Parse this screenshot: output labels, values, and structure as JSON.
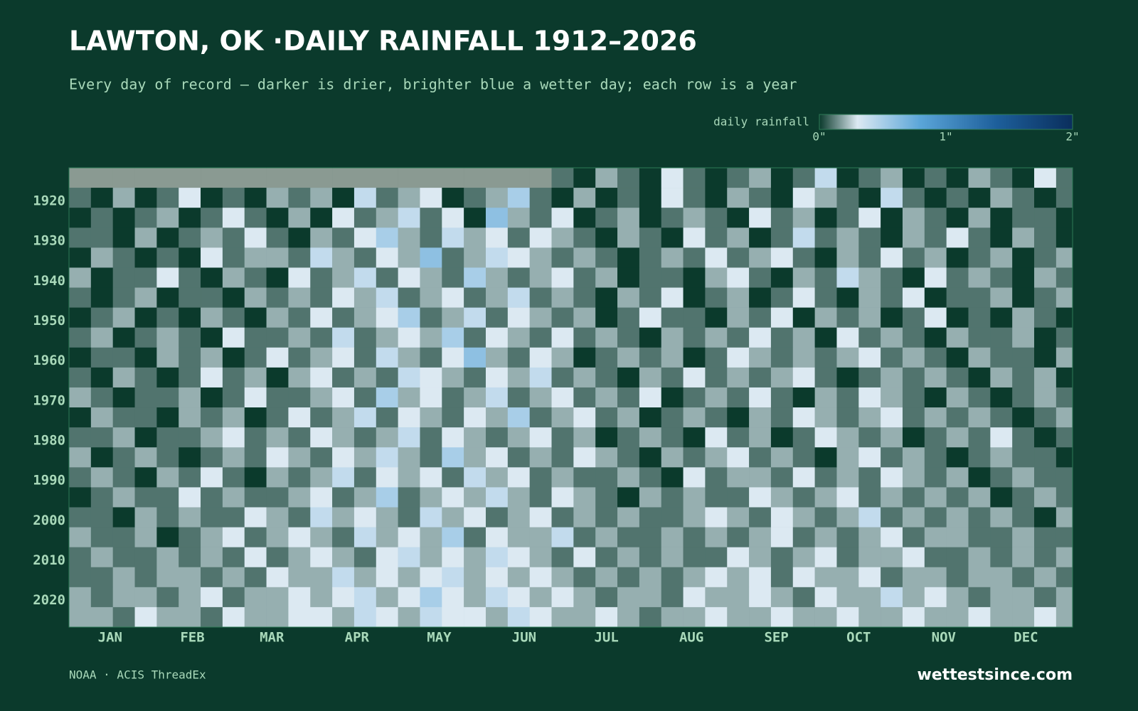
{
  "chart_data": {
    "type": "heatmap",
    "title": "LAWTON, OK ·DAILY RAINFALL 1912–2026",
    "subtitle": "Every day of record — darker is drier, brighter blue a wetter day; each row is a year",
    "legend_title": "daily rainfall",
    "source": "NOAA · ACIS ThreadEx",
    "brand": "wettestsince.com",
    "colorscale": [
      [
        0,
        "#0b3a2c"
      ],
      [
        0.3,
        "#dce9f2"
      ],
      [
        0.8,
        "#5aa5d8"
      ],
      [
        1.4,
        "#1d5f9b"
      ],
      [
        2,
        "#0a2e5c"
      ]
    ],
    "legend_ticks": [
      {
        "value": 0,
        "label": "0\""
      },
      {
        "value": 1,
        "label": "1\""
      },
      {
        "value": 2,
        "label": "2\""
      }
    ],
    "missing_color": "#8a9a92",
    "xlim": [
      1,
      367
    ],
    "ylim": [
      1912,
      2027
    ],
    "xticks": [
      {
        "value": 16,
        "label": "JAN"
      },
      {
        "value": 46,
        "label": "FEB"
      },
      {
        "value": 75,
        "label": "MAR"
      },
      {
        "value": 106,
        "label": "APR"
      },
      {
        "value": 136,
        "label": "MAY"
      },
      {
        "value": 167,
        "label": "JUN"
      },
      {
        "value": 197,
        "label": "JUL"
      },
      {
        "value": 228,
        "label": "AUG"
      },
      {
        "value": 259,
        "label": "SEP"
      },
      {
        "value": 289,
        "label": "OCT"
      },
      {
        "value": 320,
        "label": "NOV"
      },
      {
        "value": 350,
        "label": "DEC"
      }
    ],
    "yticks": [
      1920,
      1930,
      1940,
      1950,
      1960,
      1970,
      1980,
      1990,
      2000,
      2010,
      2020
    ],
    "x": [
      1,
      9,
      17,
      25,
      33,
      41,
      49,
      57,
      65,
      73,
      81,
      89,
      97,
      105,
      113,
      121,
      129,
      137,
      145,
      153,
      161,
      169,
      177,
      185,
      193,
      201,
      209,
      217,
      225,
      233,
      241,
      249,
      257,
      265,
      273,
      281,
      289,
      297,
      305,
      313,
      321,
      329,
      337,
      345,
      353,
      361
    ],
    "y": [
      1912,
      1917,
      1922,
      1927,
      1932,
      1937,
      1942,
      1947,
      1952,
      1957,
      1962,
      1967,
      1972,
      1977,
      1982,
      1987,
      1992,
      1997,
      2002,
      2007,
      2012,
      2017,
      2022
    ],
    "z": [
      [
        null,
        null,
        null,
        null,
        null,
        null,
        null,
        null,
        null,
        null,
        null,
        null,
        null,
        null,
        null,
        null,
        null,
        null,
        null,
        null,
        null,
        null,
        0.1,
        0,
        0.2,
        0.1,
        0,
        0.3,
        0.1,
        0,
        0.1,
        0.2,
        0,
        0.1,
        0.4,
        0,
        0.1,
        0.2,
        0,
        0.1,
        0,
        0.2,
        0.1,
        0,
        0.3,
        0.1
      ],
      [
        0.1,
        0,
        0.2,
        0,
        0.1,
        0.3,
        0,
        0.1,
        0,
        0.2,
        0.1,
        0.2,
        0,
        0.4,
        0.1,
        0.2,
        0.3,
        0,
        0.1,
        0.2,
        0.5,
        0.1,
        0,
        0.2,
        0,
        0.1,
        0,
        0.3,
        0.1,
        0,
        0.2,
        0.1,
        0,
        0.3,
        0.2,
        0.1,
        0,
        0.4,
        0.1,
        0,
        0.1,
        0,
        0.2,
        0.1,
        0,
        0.1
      ],
      [
        0,
        0.1,
        0,
        0.1,
        0.2,
        0,
        0.1,
        0.3,
        0.1,
        0,
        0.2,
        0,
        0.3,
        0.1,
        0.2,
        0.4,
        0.1,
        0.3,
        0,
        0.6,
        0.2,
        0.1,
        0.3,
        0,
        0.1,
        0.2,
        0,
        0.1,
        0.2,
        0.1,
        0,
        0.3,
        0.1,
        0.2,
        0,
        0.1,
        0.3,
        0,
        0.2,
        0.1,
        0,
        0.2,
        0,
        0.1,
        0.1,
        0
      ],
      [
        0.1,
        0.1,
        0,
        0.2,
        0,
        0.1,
        0.2,
        0.1,
        0.3,
        0.1,
        0,
        0.2,
        0.1,
        0.3,
        0.5,
        0.2,
        0.1,
        0.4,
        0.2,
        0.3,
        0.1,
        0.3,
        0.2,
        0.1,
        0,
        0.2,
        0.1,
        0,
        0.3,
        0.1,
        0.2,
        0,
        0.1,
        0.4,
        0.1,
        0.2,
        0.1,
        0,
        0.2,
        0.1,
        0.3,
        0.1,
        0,
        0.2,
        0.1,
        0
      ],
      [
        0,
        0.2,
        0.1,
        0,
        0.1,
        0,
        0.3,
        0.1,
        0.2,
        0.2,
        0.1,
        0.4,
        0.2,
        0.1,
        0.3,
        0.2,
        0.6,
        0.1,
        0.2,
        0.4,
        0.3,
        0.2,
        0.1,
        0.2,
        0.1,
        0,
        0.1,
        0.2,
        0.1,
        0.3,
        0.1,
        0.2,
        0.3,
        0.1,
        0,
        0.2,
        0.1,
        0.3,
        0.1,
        0.2,
        0,
        0.1,
        0.2,
        0,
        0.1,
        0.2
      ],
      [
        0.2,
        0,
        0.1,
        0.1,
        0.3,
        0.1,
        0,
        0.2,
        0.1,
        0,
        0.3,
        0.1,
        0.2,
        0.4,
        0.1,
        0.3,
        0.2,
        0.1,
        0.5,
        0.2,
        0.1,
        0.2,
        0.3,
        0.1,
        0.2,
        0,
        0.1,
        0.1,
        0,
        0.2,
        0.3,
        0.1,
        0,
        0.2,
        0.1,
        0.4,
        0.2,
        0.1,
        0,
        0.3,
        0.1,
        0.2,
        0.1,
        0,
        0.2,
        0.1
      ],
      [
        0.1,
        0,
        0.1,
        0.2,
        0,
        0.1,
        0.1,
        0,
        0.2,
        0.1,
        0.2,
        0.1,
        0.3,
        0.2,
        0.4,
        0.1,
        0.2,
        0.3,
        0.1,
        0.2,
        0.4,
        0.1,
        0.2,
        0.1,
        0,
        0.2,
        0.1,
        0.3,
        0,
        0.1,
        0.2,
        0,
        0.1,
        0.3,
        0.1,
        0,
        0.2,
        0.1,
        0.3,
        0,
        0.1,
        0.1,
        0.2,
        0,
        0.1,
        0.2
      ],
      [
        0,
        0.1,
        0.2,
        0,
        0.1,
        0,
        0.2,
        0.1,
        0,
        0.2,
        0.1,
        0.3,
        0.1,
        0.2,
        0.3,
        0.5,
        0.1,
        0.2,
        0.4,
        0.1,
        0.3,
        0.2,
        0.1,
        0.2,
        0,
        0.1,
        0.3,
        0.1,
        0.1,
        0,
        0.2,
        0.1,
        0.3,
        0,
        0.2,
        0.1,
        0.2,
        0,
        0.1,
        0.3,
        0,
        0.1,
        0,
        0.2,
        0.1,
        0
      ],
      [
        0.1,
        0.2,
        0,
        0.1,
        0.2,
        0.1,
        0,
        0.3,
        0.1,
        0.1,
        0.2,
        0.1,
        0.4,
        0.1,
        0.2,
        0.3,
        0.2,
        0.5,
        0.1,
        0.3,
        0.2,
        0.1,
        0.3,
        0.1,
        0.2,
        0.1,
        0,
        0.2,
        0.1,
        0.2,
        0.1,
        0.3,
        0.1,
        0.2,
        0,
        0.3,
        0.1,
        0.2,
        0.1,
        0,
        0.2,
        0.1,
        0.1,
        0.2,
        0,
        0.1
      ],
      [
        0,
        0.1,
        0.1,
        0,
        0.2,
        0.1,
        0.2,
        0,
        0.1,
        0.3,
        0.1,
        0.2,
        0.3,
        0.1,
        0.4,
        0.2,
        0.1,
        0.3,
        0.6,
        0.2,
        0.1,
        0.3,
        0.2,
        0,
        0.1,
        0.2,
        0.1,
        0.2,
        0,
        0.1,
        0.3,
        0.2,
        0.1,
        0.2,
        0.1,
        0.2,
        0.3,
        0.1,
        0.2,
        0.1,
        0,
        0.2,
        0.1,
        0.1,
        0,
        0.2
      ],
      [
        0.1,
        0,
        0.2,
        0.1,
        0,
        0.1,
        0.3,
        0.1,
        0.2,
        0,
        0.2,
        0.3,
        0.1,
        0.2,
        0.1,
        0.4,
        0.3,
        0.2,
        0.1,
        0.3,
        0.2,
        0.4,
        0.1,
        0.2,
        0.1,
        0,
        0.2,
        0.1,
        0.3,
        0.1,
        0.2,
        0.1,
        0.2,
        0.3,
        0.1,
        0,
        0.1,
        0.2,
        0.1,
        0.2,
        0.1,
        0,
        0.2,
        0.1,
        0.2,
        0
      ],
      [
        0.2,
        0.1,
        0,
        0.1,
        0.1,
        0.2,
        0,
        0.1,
        0.3,
        0.1,
        0.1,
        0.2,
        0.3,
        0.1,
        0.5,
        0.2,
        0.3,
        0.1,
        0.2,
        0.4,
        0.1,
        0.2,
        0.3,
        0.1,
        0.2,
        0.1,
        0.3,
        0,
        0.1,
        0.2,
        0.1,
        0.3,
        0.1,
        0,
        0.2,
        0.1,
        0.3,
        0.2,
        0.1,
        0,
        0.2,
        0.1,
        0,
        0.1,
        0.2,
        0.1
      ],
      [
        0,
        0.2,
        0.1,
        0.1,
        0,
        0.2,
        0.1,
        0.2,
        0,
        0.1,
        0.3,
        0.1,
        0.2,
        0.4,
        0.1,
        0.3,
        0.2,
        0.1,
        0.3,
        0.2,
        0.5,
        0.1,
        0.2,
        0.3,
        0.1,
        0.2,
        0,
        0.1,
        0.2,
        0.1,
        0,
        0.2,
        0.1,
        0.3,
        0.2,
        0.1,
        0.2,
        0.3,
        0.1,
        0.2,
        0.1,
        0.2,
        0.1,
        0,
        0.1,
        0.2
      ],
      [
        0.1,
        0.1,
        0.2,
        0,
        0.1,
        0.1,
        0.2,
        0.3,
        0.1,
        0.2,
        0.1,
        0.3,
        0.2,
        0.1,
        0.2,
        0.4,
        0.1,
        0.3,
        0.2,
        0.1,
        0.2,
        0.3,
        0.1,
        0.2,
        0,
        0.1,
        0.2,
        0.1,
        0,
        0.3,
        0.1,
        0.2,
        0,
        0.1,
        0.3,
        0.2,
        0.1,
        0.2,
        0,
        0.1,
        0.2,
        0.1,
        0.3,
        0.1,
        0,
        0.1
      ],
      [
        0.2,
        0,
        0.1,
        0.2,
        0.1,
        0,
        0.1,
        0.2,
        0.1,
        0.3,
        0.2,
        0.1,
        0.3,
        0.2,
        0.4,
        0.2,
        0.1,
        0.5,
        0.2,
        0.3,
        0.1,
        0.2,
        0.1,
        0.3,
        0.2,
        0.1,
        0,
        0.2,
        0.1,
        0.2,
        0.3,
        0.1,
        0.2,
        0.1,
        0,
        0.2,
        0.3,
        0.1,
        0.2,
        0.1,
        0,
        0.1,
        0.2,
        0.1,
        0.1,
        0
      ],
      [
        0.1,
        0.2,
        0.1,
        0,
        0.2,
        0.1,
        0.3,
        0.1,
        0,
        0.2,
        0.1,
        0.2,
        0.4,
        0.1,
        0.3,
        0.2,
        0.3,
        0.1,
        0.4,
        0.2,
        0.3,
        0.1,
        0.2,
        0.1,
        0.1,
        0.2,
        0.1,
        0,
        0.3,
        0.1,
        0.2,
        0.2,
        0.1,
        0.3,
        0.1,
        0.2,
        0.1,
        0.3,
        0.2,
        0.1,
        0.2,
        0,
        0.1,
        0.2,
        0.1,
        0.1
      ],
      [
        0,
        0.1,
        0.2,
        0.1,
        0.1,
        0.3,
        0.1,
        0.2,
        0.1,
        0.1,
        0.2,
        0.3,
        0.1,
        0.2,
        0.5,
        0.1,
        0.2,
        0.3,
        0.2,
        0.4,
        0.2,
        0.1,
        0.3,
        0.2,
        0.1,
        0,
        0.2,
        0.1,
        0.2,
        0.1,
        0.1,
        0.3,
        0.2,
        0.1,
        0.2,
        0.3,
        0.1,
        0.2,
        0.1,
        0.2,
        0.1,
        0.2,
        0,
        0.1,
        0.2,
        0.1
      ],
      [
        0.1,
        0.1,
        0,
        0.2,
        0.1,
        0.2,
        0.1,
        0.1,
        0.3,
        0.2,
        0.1,
        0.4,
        0.2,
        0.3,
        0.2,
        0.1,
        0.4,
        0.2,
        0.3,
        0.1,
        0.2,
        0.3,
        0.1,
        0.2,
        0.1,
        0.2,
        0.1,
        0.1,
        0.2,
        0.3,
        0.2,
        0.1,
        0.3,
        0.2,
        0.1,
        0.2,
        0.4,
        0.1,
        0.2,
        0.1,
        0.2,
        0.1,
        0.2,
        0.1,
        0,
        0.2
      ],
      [
        0.2,
        0.1,
        0.1,
        0.2,
        0,
        0.1,
        0.2,
        0.3,
        0.1,
        0.2,
        0.3,
        0.2,
        0.1,
        0.4,
        0.2,
        0.3,
        0.2,
        0.5,
        0.1,
        0.3,
        0.2,
        0.2,
        0.4,
        0.1,
        0.2,
        0.1,
        0.1,
        0.2,
        0.1,
        0.2,
        0.1,
        0.2,
        0.3,
        0.1,
        0.2,
        0.1,
        0.2,
        0.3,
        0.1,
        0.2,
        0.2,
        0.1,
        0.1,
        0.2,
        0.1,
        0.1
      ],
      [
        0.1,
        0.2,
        0.1,
        0.1,
        0.2,
        0.1,
        0.2,
        0.1,
        0.3,
        0.1,
        0.2,
        0.3,
        0.2,
        0.1,
        0.3,
        0.4,
        0.2,
        0.3,
        0.2,
        0.4,
        0.3,
        0.2,
        0.1,
        0.3,
        0.1,
        0.2,
        0.1,
        0.2,
        0.1,
        0.1,
        0.3,
        0.2,
        0.1,
        0.2,
        0.3,
        0.1,
        0.2,
        0.2,
        0.3,
        0.1,
        0.1,
        0.2,
        0.1,
        0.2,
        0.1,
        0.2
      ],
      [
        0.1,
        0.1,
        0.2,
        0.1,
        0.2,
        0.2,
        0.1,
        0.2,
        0.1,
        0.3,
        0.2,
        0.2,
        0.4,
        0.2,
        0.3,
        0.2,
        0.3,
        0.4,
        0.2,
        0.3,
        0.2,
        0.3,
        0.2,
        0.1,
        0.2,
        0.1,
        0.2,
        0.1,
        0.2,
        0.3,
        0.2,
        0.3,
        0.1,
        0.3,
        0.2,
        0.2,
        0.3,
        0.1,
        0.2,
        0.2,
        0.1,
        0.2,
        0.2,
        0.1,
        0.2,
        0.1
      ],
      [
        0.2,
        0.1,
        0.2,
        0.2,
        0.1,
        0.2,
        0.3,
        0.1,
        0.2,
        0.2,
        0.3,
        0.2,
        0.3,
        0.4,
        0.2,
        0.3,
        0.5,
        0.3,
        0.2,
        0.4,
        0.3,
        0.2,
        0.3,
        0.2,
        0.1,
        0.2,
        0.2,
        0.1,
        0.3,
        0.2,
        0.2,
        0.3,
        0.2,
        0.1,
        0.3,
        0.2,
        0.2,
        0.4,
        0.2,
        0.3,
        0.2,
        0.1,
        0.2,
        0.2,
        0.1,
        0.2
      ],
      [
        0.2,
        0.2,
        0.1,
        0.3,
        0.2,
        0.2,
        0.1,
        0.3,
        0.2,
        0.2,
        0.3,
        0.3,
        0.2,
        0.4,
        0.3,
        0.2,
        0.4,
        0.3,
        0.3,
        0.2,
        0.4,
        0.3,
        0.2,
        0.2,
        0.3,
        0.2,
        0.1,
        0.2,
        0.2,
        0.3,
        0.2,
        0.2,
        0.3,
        0.2,
        0.2,
        0.3,
        0.2,
        0.2,
        0.3,
        0.2,
        0.2,
        0.3,
        0.2,
        0.2,
        0.3,
        0.2
      ]
    ]
  }
}
